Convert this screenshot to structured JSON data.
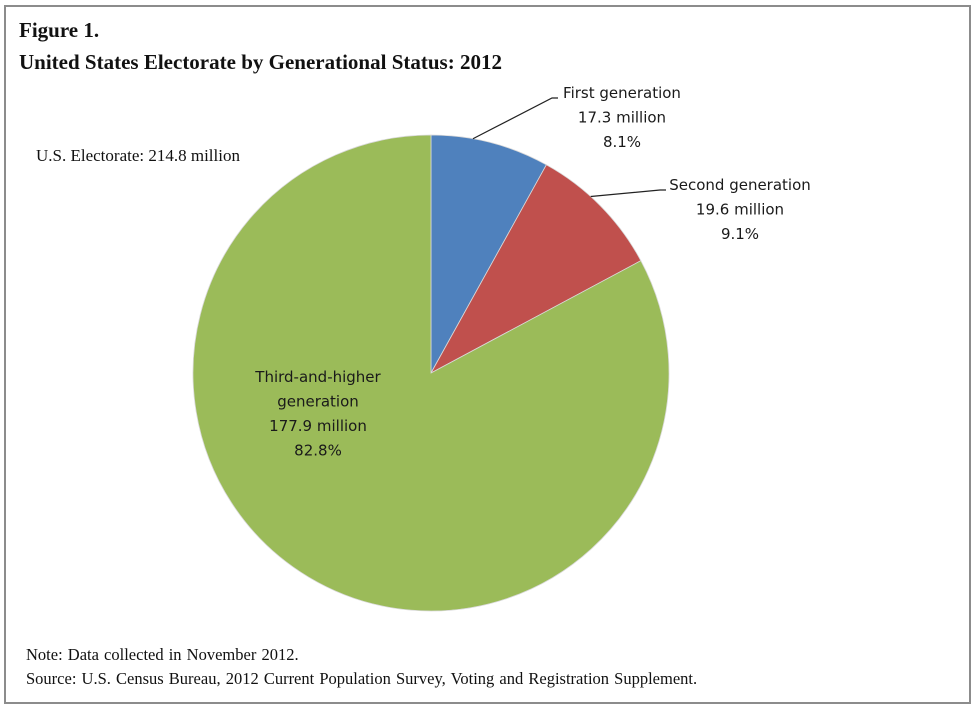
{
  "figure_label": "Figure 1.",
  "chart_data": {
    "type": "pie",
    "title": "United States Electorate by Generational Status: 2012",
    "total_label": "U.S. Electorate:  214.8 million",
    "total_millions": 214.8,
    "start_angle_deg": 0,
    "direction": "clockwise",
    "slices": [
      {
        "name": "First generation",
        "value_millions": 17.3,
        "percent": 8.1,
        "value_label": "17.3 million",
        "percent_label": "8.1%",
        "color": "#4f81bd"
      },
      {
        "name": "Second generation",
        "value_millions": 19.6,
        "percent": 9.1,
        "value_label": "19.6 million",
        "percent_label": "9.1%",
        "color": "#c0504d"
      },
      {
        "name": "Third-and-higher generation",
        "name_lines": [
          "Third-and-higher",
          "generation"
        ],
        "value_millions": 177.9,
        "percent": 82.8,
        "value_label": "177.9 million",
        "percent_label": "82.8%",
        "color": "#9bbb59"
      }
    ]
  },
  "footer": {
    "note": "Note: Data collected in November 2012.",
    "source": "Source: U.S. Census Bureau, 2012 Current Population  Survey,  Voting  and Registration  Supplement."
  }
}
